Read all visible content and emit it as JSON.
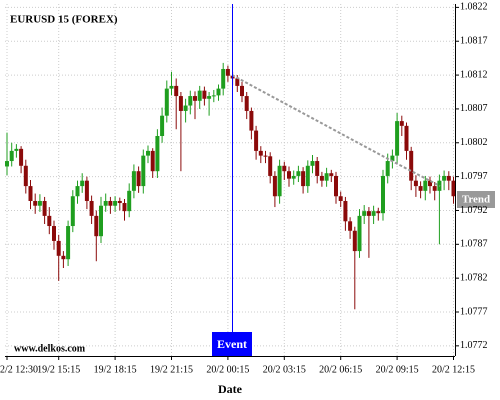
{
  "chart_data": {
    "type": "candlestick",
    "title": "EURUSD 15 (FOREX)",
    "x_label": "Date",
    "watermark": "www.delkos.com",
    "event_label": "Event",
    "trend_label": "Trend",
    "up_color": "#1f9e1f",
    "down_color": "#8b0a0a",
    "grid": true,
    "ylim": [
      1.07705,
      1.08225
    ],
    "yticks": [
      1.0822,
      1.0817,
      1.0812,
      1.0807,
      1.0802,
      1.0797,
      1.0792,
      1.0787,
      1.0782,
      1.0777,
      1.0772
    ],
    "categories": [
      "2/2 12:30",
      null,
      null,
      null,
      null,
      null,
      null,
      null,
      null,
      null,
      null,
      "19/2 15:15",
      null,
      null,
      null,
      null,
      null,
      null,
      null,
      null,
      null,
      null,
      null,
      "19/2 18:15",
      null,
      null,
      null,
      null,
      null,
      null,
      null,
      null,
      null,
      null,
      null,
      "19/2 21:15",
      null,
      null,
      null,
      null,
      null,
      null,
      null,
      null,
      null,
      null,
      null,
      "20/2 00:15",
      null,
      null,
      null,
      null,
      null,
      null,
      null,
      null,
      null,
      null,
      null,
      "20/2 03:15",
      null,
      null,
      null,
      null,
      null,
      null,
      null,
      null,
      null,
      null,
      null,
      "20/2 06:15",
      null,
      null,
      null,
      null,
      null,
      null,
      null,
      null,
      null,
      null,
      null,
      "20/2 09:15",
      null,
      null,
      null,
      null,
      null,
      null,
      null,
      null,
      null,
      null,
      null,
      "20/2 12:15"
    ],
    "open": [
      1.07985,
      1.07993,
      1.08008,
      1.08011,
      1.07986,
      1.07956,
      1.07934,
      1.07927,
      1.07934,
      1.07912,
      1.07897,
      1.07875,
      1.07853,
      1.07848,
      1.07897,
      1.07941,
      1.07956,
      1.07964,
      1.07934,
      1.07912,
      1.07882,
      1.07927,
      1.07934,
      1.07927,
      1.07934,
      1.07931,
      1.07919,
      1.07949,
      1.07978,
      1.07956,
      1.08001,
      1.08008,
      1.07978,
      1.0803,
      1.0806,
      1.081,
      1.08104,
      1.08089,
      1.08067,
      1.08075,
      1.08089,
      1.08082,
      1.08097,
      1.08085,
      1.08089,
      1.0809,
      1.081,
      1.08129,
      1.08119,
      1.08115,
      1.08104,
      1.08089,
      1.08067,
      1.08038,
      1.08008,
      1.08001,
      1.08,
      1.07971,
      1.07941,
      1.07986,
      1.07978,
      1.07967,
      1.07971,
      1.07978,
      1.07956,
      1.07986,
      1.07993,
      1.07971,
      1.07964,
      1.07975,
      1.07971,
      1.07941,
      1.07934,
      1.07904,
      1.0789,
      1.0786,
      1.07912,
      1.07919,
      1.07912,
      1.07919,
      1.07916,
      1.07971,
      1.07993,
      1.08001,
      1.08052,
      1.08045,
      1.08008,
      1.07964,
      1.07956,
      1.07949,
      1.07964,
      1.07956,
      1.07949,
      1.07964,
      1.07971,
      1.07964
    ],
    "high": [
      1.08035,
      1.0802,
      1.08018,
      1.08015,
      1.07995,
      1.07965,
      1.07945,
      1.07944,
      1.0794,
      1.07925,
      1.07905,
      1.07884,
      1.0786,
      1.07905,
      1.0795,
      1.07964,
      1.07975,
      1.0797,
      1.07942,
      1.0792,
      1.0794,
      1.07945,
      1.0794,
      1.07941,
      1.07939,
      1.07937,
      1.0796,
      1.07988,
      1.07985,
      1.0801,
      1.08016,
      1.08012,
      1.0804,
      1.08072,
      1.08112,
      1.08125,
      1.08115,
      1.08095,
      1.08085,
      1.08097,
      1.08096,
      1.08104,
      1.08103,
      1.08095,
      1.08098,
      1.08106,
      1.08138,
      1.08134,
      1.08125,
      1.0812,
      1.0811,
      1.08095,
      1.08072,
      1.08045,
      1.08015,
      1.08008,
      1.08006,
      1.07978,
      1.07995,
      1.07992,
      1.07985,
      1.07979,
      1.07986,
      1.07984,
      1.07994,
      1.08002,
      1.07999,
      1.07977,
      1.07983,
      1.0798,
      1.07977,
      1.07948,
      1.0794,
      1.0791,
      1.07896,
      1.07922,
      1.07928,
      1.07925,
      1.07927,
      1.07924,
      1.0798,
      1.08004,
      1.0801,
      1.08064,
      1.0806,
      1.0805,
      1.08014,
      1.07972,
      1.07963,
      1.07971,
      1.0797,
      1.07962,
      1.07973,
      1.07979,
      1.07978,
      1.0797
    ],
    "low": [
      1.07972,
      1.07985,
      1.07998,
      1.07975,
      1.07945,
      1.07922,
      1.07915,
      1.07918,
      1.079,
      1.07885,
      1.07862,
      1.07816,
      1.07835,
      1.07838,
      1.07888,
      1.0793,
      1.07946,
      1.07922,
      1.079,
      1.07845,
      1.07872,
      1.07918,
      1.07915,
      1.07918,
      1.0792,
      1.07905,
      1.0791,
      1.07938,
      1.07946,
      1.07945,
      1.0799,
      1.07968,
      1.07968,
      1.0802,
      1.0805,
      1.0809,
      1.0804,
      1.07978,
      1.0805,
      1.08062,
      1.08055,
      1.0807,
      1.08075,
      1.0806,
      1.0808,
      1.08082,
      1.0809,
      1.0811,
      1.08105,
      1.08095,
      1.0808,
      1.08055,
      1.08025,
      1.07995,
      1.0799,
      1.0799,
      1.0796,
      1.07925,
      1.0793,
      1.07965,
      1.07955,
      1.07958,
      1.07962,
      1.07945,
      1.07946,
      1.07975,
      1.0796,
      1.07955,
      1.07955,
      1.07962,
      1.0793,
      1.07925,
      1.0789,
      1.07878,
      1.07774,
      1.0785,
      1.079,
      1.0785,
      1.079,
      1.07905,
      1.07905,
      1.0796,
      1.07982,
      1.0799,
      1.0803,
      1.07995,
      1.0795,
      1.0794,
      1.07938,
      1.07935,
      1.07945,
      1.07935,
      1.0787,
      1.0795,
      1.0795,
      1.0793
    ],
    "close": [
      1.07993,
      1.08008,
      1.08011,
      1.07986,
      1.07956,
      1.07934,
      1.07927,
      1.07934,
      1.07912,
      1.07897,
      1.07875,
      1.07853,
      1.07848,
      1.07897,
      1.07941,
      1.07956,
      1.07964,
      1.07934,
      1.07912,
      1.07882,
      1.07927,
      1.07934,
      1.07927,
      1.07934,
      1.07931,
      1.07919,
      1.07949,
      1.07978,
      1.07956,
      1.08001,
      1.08008,
      1.07978,
      1.0803,
      1.0806,
      1.081,
      1.08104,
      1.08089,
      1.08067,
      1.08075,
      1.08089,
      1.08082,
      1.08097,
      1.08085,
      1.08089,
      1.0809,
      1.081,
      1.08129,
      1.08119,
      1.08115,
      1.08104,
      1.08089,
      1.08067,
      1.08038,
      1.08008,
      1.08001,
      1.08,
      1.07971,
      1.07941,
      1.07986,
      1.07978,
      1.07967,
      1.07971,
      1.07978,
      1.07956,
      1.07986,
      1.07993,
      1.07971,
      1.07964,
      1.07975,
      1.07971,
      1.07941,
      1.07934,
      1.07904,
      1.0789,
      1.0786,
      1.07912,
      1.07919,
      1.07912,
      1.07919,
      1.07916,
      1.07971,
      1.07993,
      1.08001,
      1.08052,
      1.08045,
      1.08008,
      1.07964,
      1.07956,
      1.07949,
      1.07964,
      1.07956,
      1.07949,
      1.07964,
      1.07971,
      1.07964,
      1.07941
    ]
  }
}
